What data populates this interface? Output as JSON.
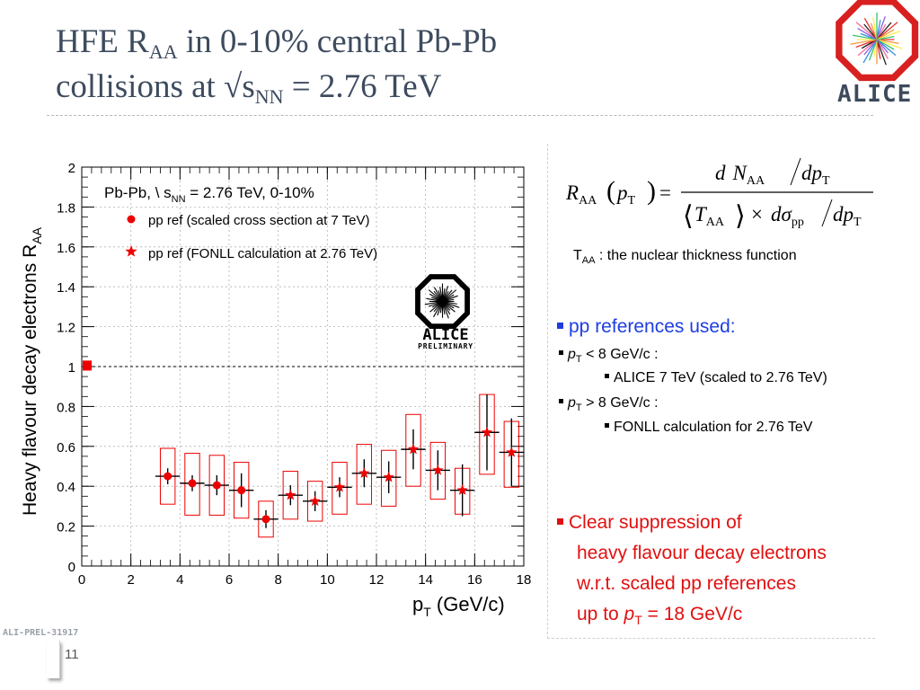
{
  "slide": {
    "title_line1_a": "HFE R",
    "title_line1_sub": "AA",
    "title_line1_b": " in 0-10% central Pb-Pb",
    "title_line2_a": "collisions at √s",
    "title_line2_sub": "NN",
    "title_line2_b": " = 2.76 TeV",
    "logo_text": "ALICE",
    "page_number": "11",
    "preliminary_id": "ALI-PREL-31917"
  },
  "formula": {
    "lhs": "R",
    "lhs_sub": "AA",
    "arg": "p",
    "arg_sub": "T",
    "num_d": "d",
    "num_N": "N",
    "num_N_sub": "AA",
    "num_dp": "dp",
    "num_dp_sub": "T",
    "den_T": "T",
    "den_T_sub": "AA",
    "den_times": "×",
    "den_d": "d",
    "den_sigma": "σ",
    "den_sigma_sub": "pp",
    "den_dp": "dp",
    "den_dp_sub": "T"
  },
  "panel": {
    "taa_a": "T",
    "taa_sub": "AA",
    "taa_b": " : the nuclear thickness function",
    "refs_heading": "pp references used:",
    "ref1_a": "p",
    "ref1_sub": "T",
    "ref1_b": " < 8 GeV/c :",
    "ref1_detail": "ALICE 7 TeV (scaled to 2.76 TeV)",
    "ref2_a": "p",
    "ref2_sub": "T",
    "ref2_b": " > 8 GeV/c :",
    "ref2_detail": "FONLL calculation for 2.76 TeV",
    "conclusion_l1": "Clear suppression of",
    "conclusion_l2": "heavy flavour decay electrons",
    "conclusion_l3": "w.r.t. scaled pp  references",
    "conclusion_l4_a": "up to ",
    "conclusion_l4_p": "p",
    "conclusion_l4_sub": "T",
    "conclusion_l4_b": " = 18 GeV/c"
  },
  "chart_data": {
    "type": "scatter",
    "xlabel": "p",
    "xlabel_sub": "T",
    "xlabel_unit": " (GeV/c)",
    "ylabel": "Heavy flavour decay electrons R",
    "ylabel_sub": "AA",
    "xlim": [
      0,
      18
    ],
    "ylim": [
      0,
      2
    ],
    "xticks": [
      0,
      2,
      4,
      6,
      8,
      10,
      12,
      14,
      16,
      18
    ],
    "yticks": [
      0,
      0.2,
      0.4,
      0.6,
      0.8,
      1,
      1.2,
      1.4,
      1.6,
      1.8,
      2
    ],
    "ytick_labels": [
      "0",
      "0.2",
      "0.4",
      "0.6",
      "0.8",
      "1",
      "1.2",
      "1.4",
      "1.6",
      "1.8",
      "2"
    ],
    "reference_line": 1,
    "legend": {
      "header_a": "Pb-Pb, \\ s",
      "header_sub": "NN",
      "header_b": " = 2.76 TeV, 0-10%",
      "entry1": "pp ref (scaled cross section at 7 TeV)",
      "entry2": "pp ref (FONLL calculation at 2.76 TeV)"
    },
    "logo_text": "ALICE",
    "logo_sub": "PRELIMINARY",
    "normalization_box": [
      0.98,
      1.03
    ],
    "series": [
      {
        "marker": "circle",
        "color": "#ee0000",
        "points": [
          {
            "x": 3.5,
            "y": 0.45,
            "xerr": 0.5,
            "stat": 0.04,
            "sys_lo": 0.31,
            "sys_hi": 0.59
          },
          {
            "x": 4.5,
            "y": 0.415,
            "xerr": 0.5,
            "stat": 0.04,
            "sys_lo": 0.255,
            "sys_hi": 0.565
          },
          {
            "x": 5.5,
            "y": 0.405,
            "xerr": 0.5,
            "stat": 0.05,
            "sys_lo": 0.255,
            "sys_hi": 0.555
          },
          {
            "x": 6.5,
            "y": 0.38,
            "xerr": 0.5,
            "stat": 0.085,
            "sys_lo": 0.24,
            "sys_hi": 0.52
          },
          {
            "x": 7.5,
            "y": 0.235,
            "xerr": 0.5,
            "stat": 0.045,
            "sys_lo": 0.145,
            "sys_hi": 0.325
          }
        ]
      },
      {
        "marker": "star",
        "color": "#ee0000",
        "points": [
          {
            "x": 8.5,
            "y": 0.355,
            "xerr": 0.5,
            "stat": 0.05,
            "sys_lo": 0.235,
            "sys_hi": 0.475
          },
          {
            "x": 9.5,
            "y": 0.325,
            "xerr": 0.5,
            "stat": 0.05,
            "sys_lo": 0.225,
            "sys_hi": 0.425
          },
          {
            "x": 10.5,
            "y": 0.395,
            "xerr": 0.5,
            "stat": 0.05,
            "sys_lo": 0.26,
            "sys_hi": 0.52
          },
          {
            "x": 11.5,
            "y": 0.465,
            "xerr": 0.5,
            "stat": 0.07,
            "sys_lo": 0.31,
            "sys_hi": 0.61
          },
          {
            "x": 12.5,
            "y": 0.445,
            "xerr": 0.5,
            "stat": 0.08,
            "sys_lo": 0.3,
            "sys_hi": 0.58
          },
          {
            "x": 13.5,
            "y": 0.585,
            "xerr": 0.5,
            "stat": 0.1,
            "sys_lo": 0.4,
            "sys_hi": 0.76
          },
          {
            "x": 14.5,
            "y": 0.48,
            "xerr": 0.5,
            "stat": 0.1,
            "sys_lo": 0.335,
            "sys_hi": 0.62
          },
          {
            "x": 15.5,
            "y": 0.38,
            "xerr": 0.5,
            "stat": 0.13,
            "sys_lo": 0.26,
            "sys_hi": 0.49
          },
          {
            "x": 16.5,
            "y": 0.67,
            "xerr": 0.5,
            "stat": 0.19,
            "sys_lo": 0.46,
            "sys_hi": 0.86
          },
          {
            "x": 17.5,
            "y": 0.57,
            "xerr": 0.5,
            "stat": 0.17,
            "sys_lo": 0.395,
            "sys_hi": 0.725
          }
        ]
      }
    ]
  },
  "colors": {
    "title": "#3d4b5e",
    "blue_text": "#1e3ee0",
    "red_text": "#e01010",
    "marker": "#ee0000"
  }
}
